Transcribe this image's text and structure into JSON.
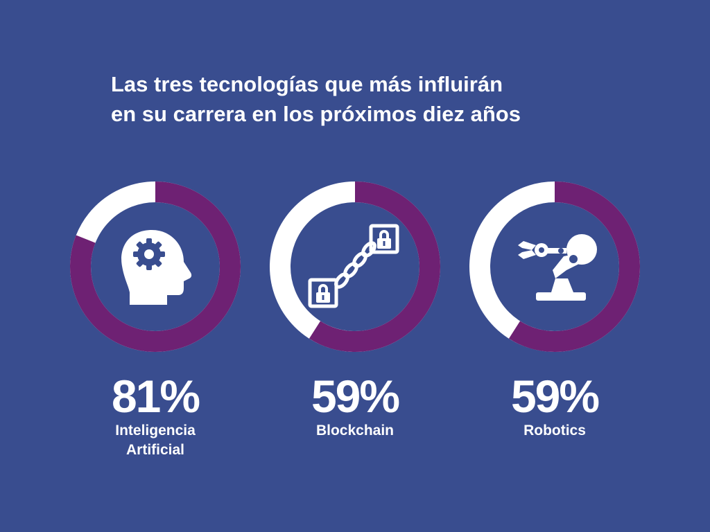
{
  "title": {
    "line1": "Las tres tecnologías que más influirán",
    "line2": "en su carrera en los próximos diez años"
  },
  "colors": {
    "background": "#394d8f",
    "filled": "#6e2173",
    "remaining": "#ffffff",
    "text": "#ffffff"
  },
  "chart_data": {
    "type": "pie",
    "variant": "donut",
    "title": "Las tres tecnologías que más influirán en su carrera en los próximos diez años",
    "unit": "%",
    "categories": [
      "Inteligencia Artificial",
      "Blockchain",
      "Robotics"
    ],
    "values": [
      81,
      59,
      59
    ],
    "items": [
      {
        "percent_label": "81%",
        "label_lines": [
          "Inteligencia",
          "Artificial"
        ],
        "value": 81,
        "icon": "ai-head-gear-icon"
      },
      {
        "percent_label": "59%",
        "label_lines": [
          "Blockchain"
        ],
        "value": 59,
        "icon": "blockchain-chain-lock-icon"
      },
      {
        "percent_label": "59%",
        "label_lines": [
          "Robotics"
        ],
        "value": 59,
        "icon": "robot-arm-icon"
      }
    ]
  }
}
